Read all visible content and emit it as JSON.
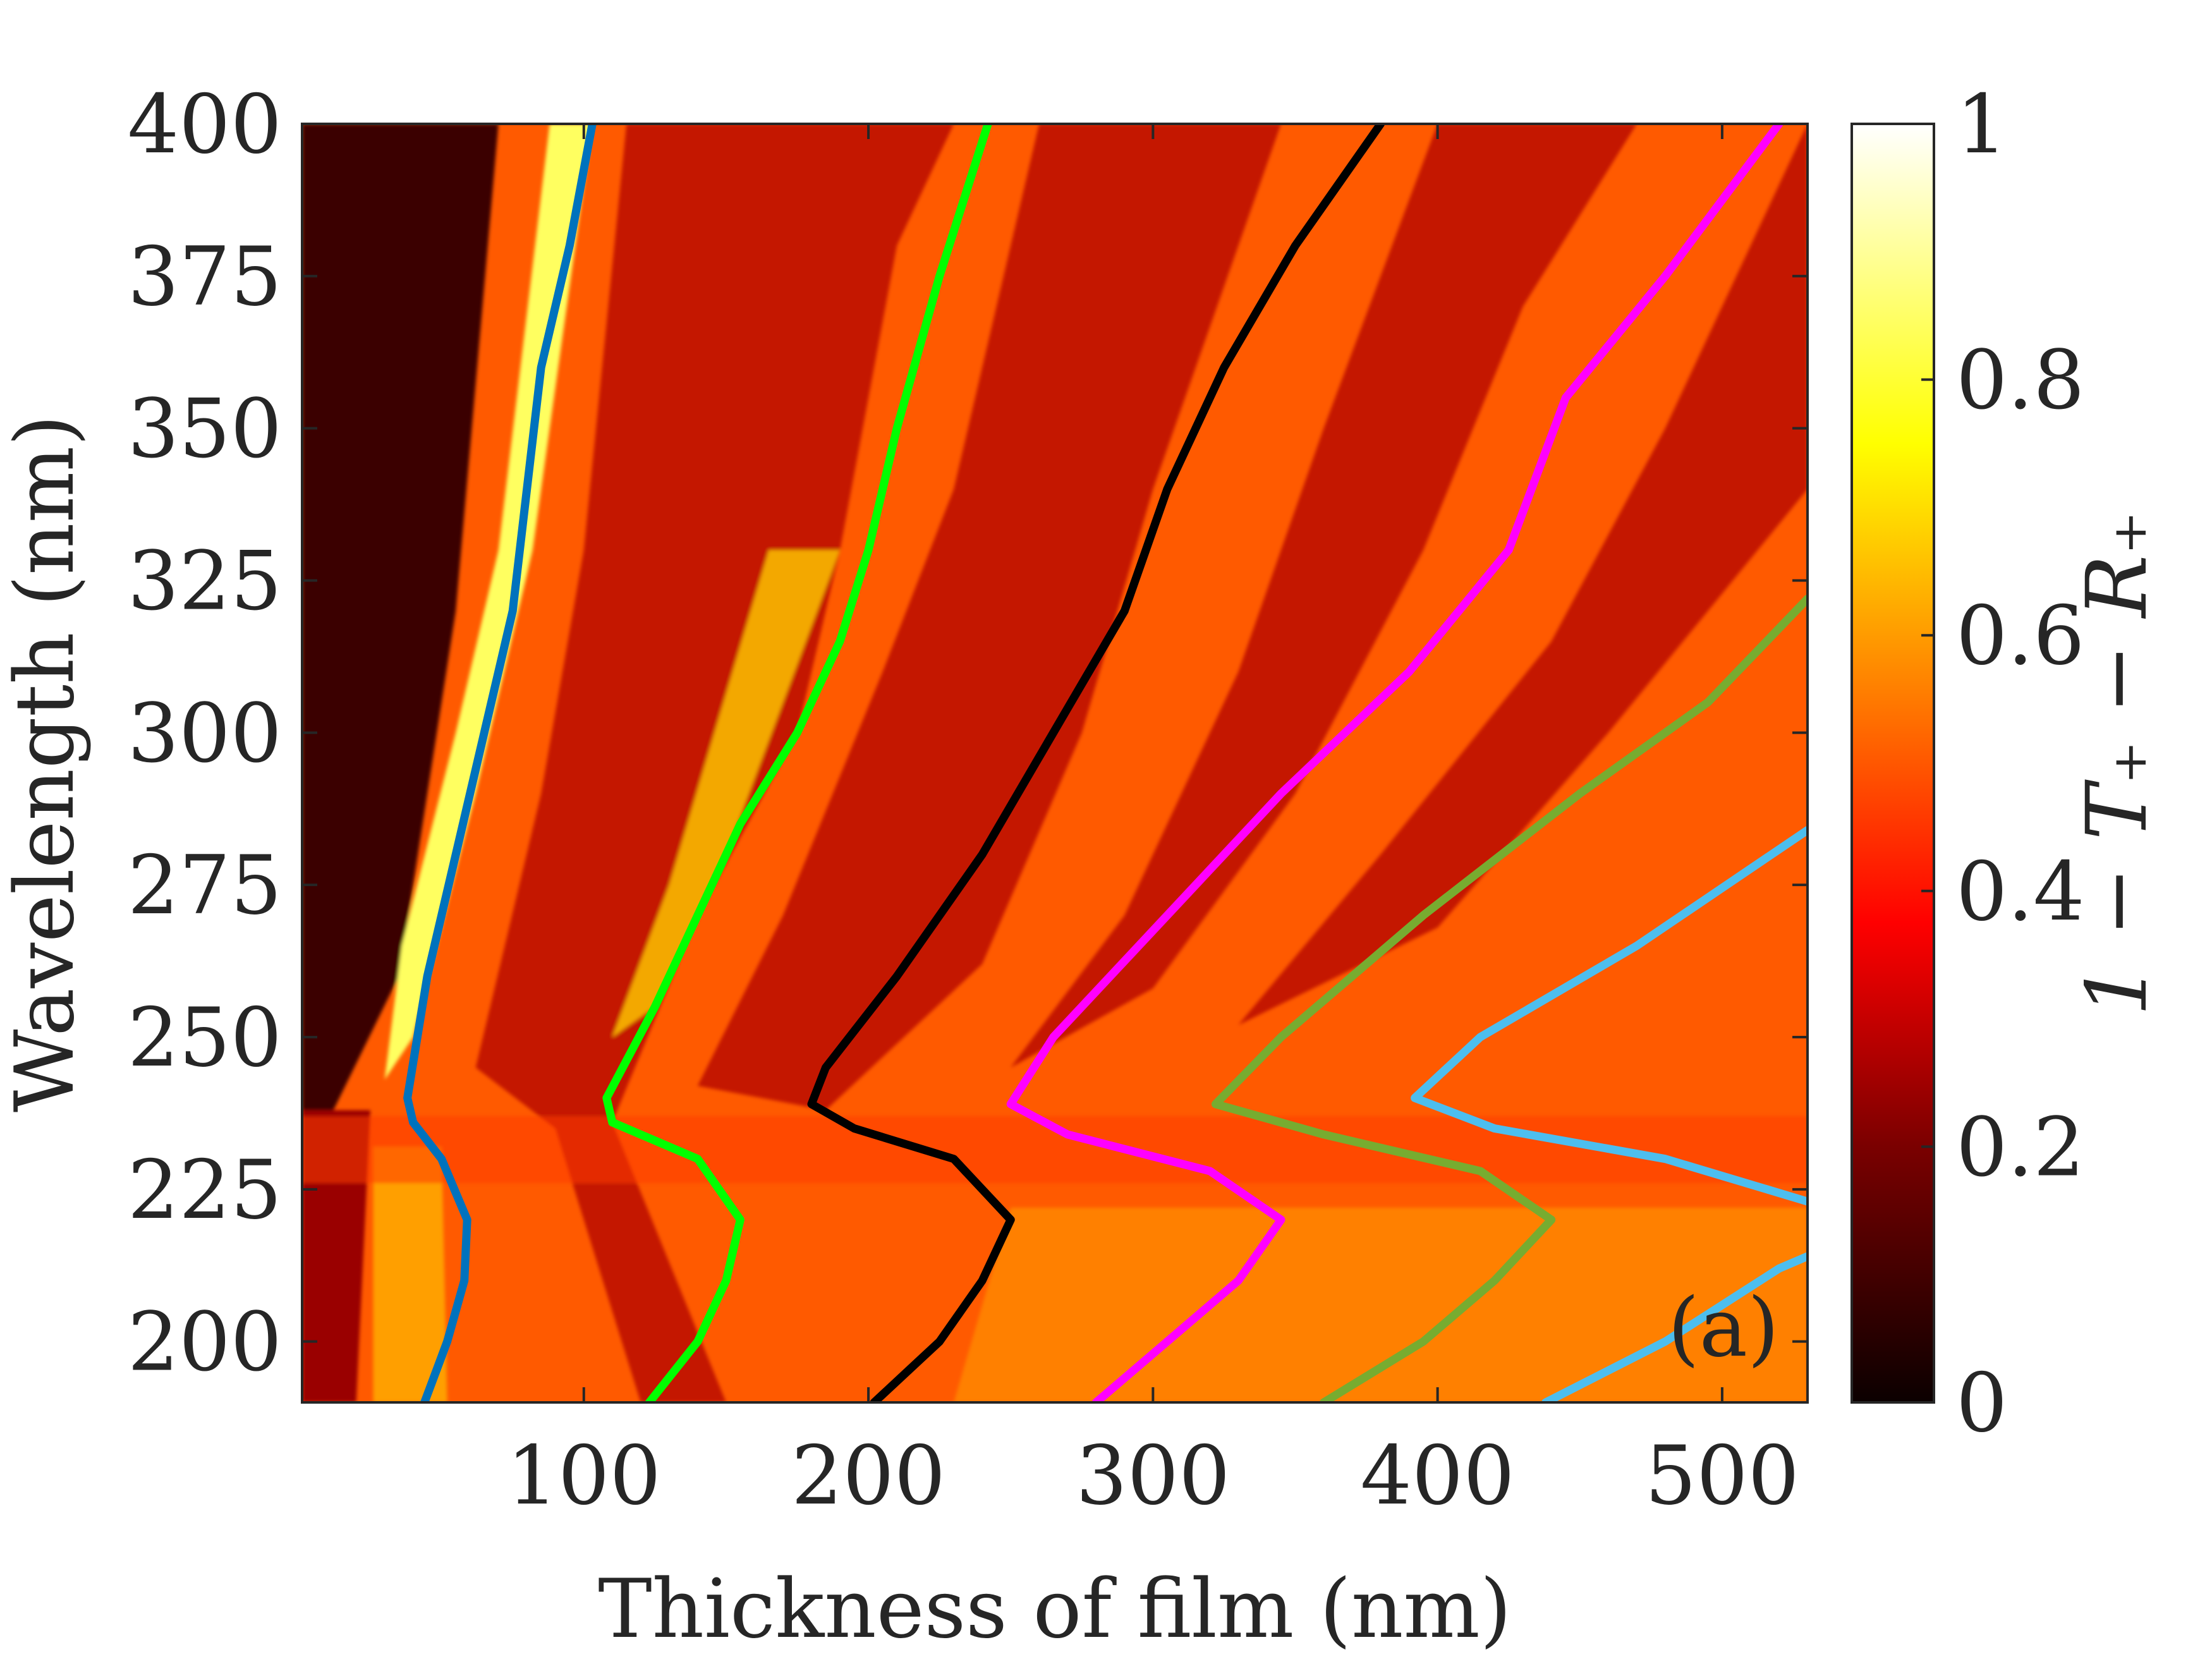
{
  "chart_data": {
    "type": "heatmap",
    "xlabel": "Thickness of film (nm)",
    "ylabel": "Wavelength (nm)",
    "colorbar_label": "1 − T₊ − R₊",
    "panel_label": "(a)",
    "xlim": [
      1,
      530
    ],
    "ylim": [
      190,
      400
    ],
    "xticks": [
      100,
      200,
      300,
      400,
      500
    ],
    "yticks": [
      200,
      225,
      250,
      275,
      300,
      325,
      350,
      375,
      400
    ],
    "colorbar": {
      "colormap": "hot",
      "range": [
        0,
        1
      ],
      "ticks": [
        0,
        0.2,
        0.4,
        0.6,
        0.8,
        1
      ],
      "tick_labels": [
        "0",
        "0.2",
        "0.4",
        "0.6",
        "0.8",
        "1"
      ]
    },
    "contours": [
      {
        "color": "#0072BD",
        "points": [
          [
            44,
            190
          ],
          [
            52,
            200
          ],
          [
            58,
            210
          ],
          [
            59,
            220
          ],
          [
            50,
            230
          ],
          [
            40,
            236
          ],
          [
            38,
            240
          ],
          [
            45,
            260
          ],
          [
            55,
            280
          ],
          [
            65,
            300
          ],
          [
            75,
            320
          ],
          [
            80,
            340
          ],
          [
            85,
            360
          ],
          [
            95,
            380
          ],
          [
            103,
            400
          ]
        ]
      },
      {
        "color": "#00FF00",
        "points": [
          [
            123,
            190
          ],
          [
            140,
            200
          ],
          [
            150,
            210
          ],
          [
            155,
            220
          ],
          [
            140,
            230
          ],
          [
            110,
            236
          ],
          [
            108,
            240
          ],
          [
            125,
            255
          ],
          [
            140,
            270
          ],
          [
            155,
            285
          ],
          [
            175,
            300
          ],
          [
            190,
            315
          ],
          [
            200,
            330
          ],
          [
            210,
            350
          ],
          [
            225,
            375
          ],
          [
            242,
            400
          ]
        ]
      },
      {
        "color": "#000000",
        "points": [
          [
            202,
            190
          ],
          [
            225,
            200
          ],
          [
            240,
            210
          ],
          [
            250,
            220
          ],
          [
            230,
            230
          ],
          [
            195,
            235
          ],
          [
            180,
            239
          ],
          [
            185,
            245
          ],
          [
            210,
            260
          ],
          [
            240,
            280
          ],
          [
            265,
            300
          ],
          [
            290,
            320
          ],
          [
            305,
            340
          ],
          [
            325,
            360
          ],
          [
            350,
            380
          ],
          [
            380,
            400
          ]
        ]
      },
      {
        "color": "#FF00FF",
        "points": [
          [
            280,
            190
          ],
          [
            305,
            200
          ],
          [
            330,
            210
          ],
          [
            345,
            220
          ],
          [
            320,
            228
          ],
          [
            270,
            234
          ],
          [
            250,
            239
          ],
          [
            265,
            250
          ],
          [
            305,
            270
          ],
          [
            345,
            290
          ],
          [
            390,
            310
          ],
          [
            425,
            330
          ],
          [
            445,
            355
          ],
          [
            480,
            375
          ],
          [
            520,
            400
          ]
        ]
      },
      {
        "color": "#77AC30",
        "points": [
          [
            360,
            190
          ],
          [
            395,
            200
          ],
          [
            420,
            210
          ],
          [
            440,
            220
          ],
          [
            415,
            228
          ],
          [
            360,
            234
          ],
          [
            322,
            239
          ],
          [
            345,
            250
          ],
          [
            395,
            270
          ],
          [
            450,
            290
          ],
          [
            495,
            305
          ],
          [
            530,
            322
          ]
        ]
      },
      {
        "color": "#4DBEEE",
        "points": [
          [
            438,
            190
          ],
          [
            480,
            200
          ],
          [
            520,
            212
          ],
          [
            530,
            214
          ]
        ]
      },
      {
        "color": "#4DBEEE",
        "points": [
          [
            530,
            223
          ],
          [
            480,
            230
          ],
          [
            420,
            235
          ],
          [
            392,
            240
          ],
          [
            415,
            250
          ],
          [
            470,
            265
          ],
          [
            530,
            284
          ]
        ]
      }
    ]
  }
}
